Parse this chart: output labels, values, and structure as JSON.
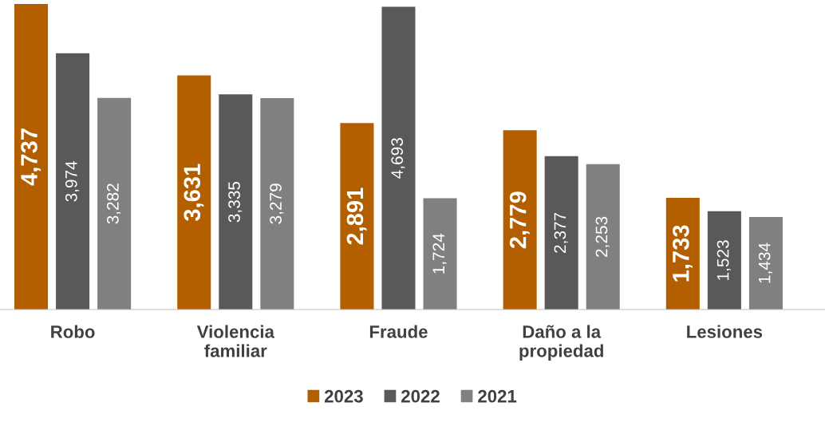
{
  "chart_data": {
    "type": "bar",
    "categories": [
      "Robo",
      "Violencia\nfamiliar",
      "Fraude",
      "Daño a la\npropiedad",
      "Lesiones"
    ],
    "series": [
      {
        "name": "2023",
        "color": "#b35f00",
        "values": [
          4737,
          3631,
          2891,
          2779,
          1733
        ],
        "value_labels": [
          "4,737",
          "3,631",
          "2,891",
          "2,779",
          "1,733"
        ]
      },
      {
        "name": "2022",
        "color": "#595959",
        "values": [
          3974,
          3335,
          4693,
          2377,
          1523
        ],
        "value_labels": [
          "3,974",
          "3,335",
          "4,693",
          "2,377",
          "1,523"
        ]
      },
      {
        "name": "2021",
        "color": "#808080",
        "values": [
          3282,
          3279,
          1724,
          2253,
          1434
        ],
        "value_labels": [
          "3,282",
          "3,279",
          "1,724",
          "2,253",
          "1,434"
        ]
      }
    ],
    "legend": "bottom",
    "grid": false
  }
}
